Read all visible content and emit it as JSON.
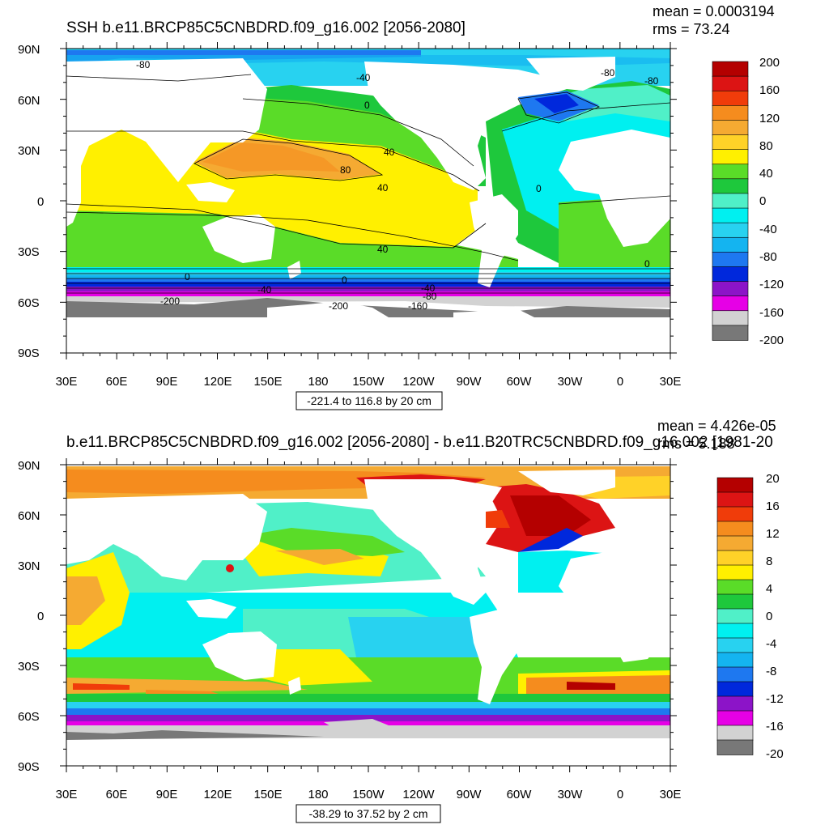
{
  "panels": [
    {
      "id": "top",
      "title": "SSH b.e11.BRCP85C5CNBDRD.f09_g16.002 [2056-2080]",
      "stats": {
        "mean": "mean = 0.0003194",
        "rms": "rms = 73.24"
      },
      "lat_labels": [
        "90N",
        "60N",
        "30N",
        "0",
        "30S",
        "60S",
        "90S"
      ],
      "lon_labels": [
        "30E",
        "60E",
        "90E",
        "120E",
        "150E",
        "180",
        "150W",
        "120W",
        "90W",
        "60W",
        "30W",
        "0",
        "30E"
      ],
      "range_text": "-221.4 to 116.8 by 20 cm",
      "colorbar": {
        "labels": [
          "200",
          "160",
          "120",
          "80",
          "40",
          "0",
          "-40",
          "-80",
          "-120",
          "-160",
          "-200"
        ],
        "colors": [
          "#b40000",
          "#dc1414",
          "#f03c0a",
          "#f58c1e",
          "#f5aa32",
          "#ffd228",
          "#fff000",
          "#5adc28",
          "#1ec83c",
          "#50f0c8",
          "#00f0f0",
          "#28d2f0",
          "#14b4f0",
          "#1e78f0",
          "#0028dc",
          "#8c14c8",
          "#e600e6",
          "#d2d2d2",
          "#787878"
        ]
      },
      "contour_labels": [
        "-80",
        "-40",
        "0",
        "40",
        "80",
        "40",
        "40",
        "0",
        "-80",
        "-80",
        "0",
        "0",
        "-200",
        "-40",
        "0",
        "-200",
        "-160",
        "-80",
        "-40"
      ]
    },
    {
      "id": "bottom",
      "title": "b.e11.BRCP85C5CNBDRD.f09_g16.002 [2056-2080] - b.e11.B20TRC5CNBDRD.f09_g16.002 [1981-20",
      "stats": {
        "mean": "mean = 4.426e-05",
        "rms": "rms = 5.188"
      },
      "lat_labels": [
        "90N",
        "60N",
        "30N",
        "0",
        "30S",
        "60S",
        "90S"
      ],
      "lon_labels": [
        "30E",
        "60E",
        "90E",
        "120E",
        "150E",
        "180",
        "150W",
        "120W",
        "90W",
        "60W",
        "30W",
        "0",
        "30E"
      ],
      "range_text": "-38.29 to 37.52 by 2 cm",
      "colorbar": {
        "labels": [
          "20",
          "16",
          "12",
          "8",
          "4",
          "0",
          "-4",
          "-8",
          "-12",
          "-16",
          "-20"
        ],
        "colors": [
          "#b40000",
          "#dc1414",
          "#f03c0a",
          "#f58c1e",
          "#f5aa32",
          "#ffd228",
          "#fff000",
          "#5adc28",
          "#1ec83c",
          "#50f0c8",
          "#00f0f0",
          "#28d2f0",
          "#14b4f0",
          "#1e78f0",
          "#0028dc",
          "#8c14c8",
          "#e600e6",
          "#d2d2d2",
          "#787878"
        ]
      },
      "contour_labels": []
    }
  ]
}
